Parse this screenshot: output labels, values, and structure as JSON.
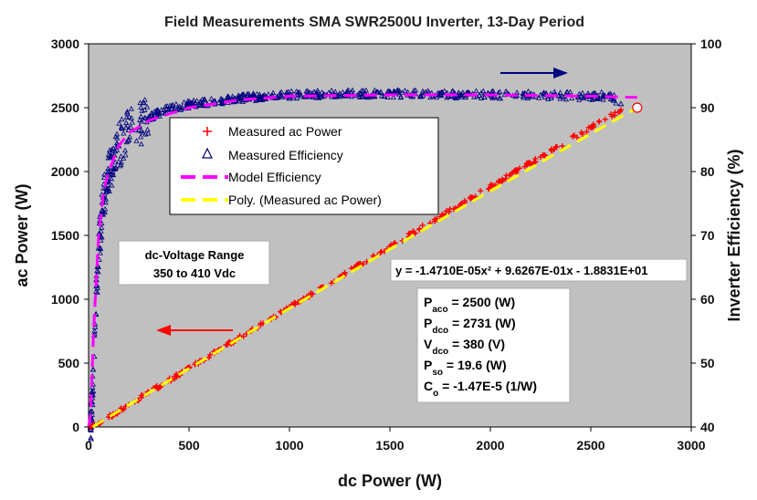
{
  "chart_data": {
    "type": "scatter",
    "title": "Field Measurements SMA SWR2500U Inverter, 13-Day Period",
    "xlabel": "dc Power (W)",
    "ylabel_left": "ac Power (W)",
    "ylabel_right": "Inverter Efficiency (%)",
    "xlim": [
      0,
      3000
    ],
    "ylim_left": [
      0,
      3000
    ],
    "ylim_right": [
      40,
      100
    ],
    "x_ticks": [
      "0",
      "500",
      "1000",
      "1500",
      "2000",
      "2500",
      "3000"
    ],
    "y_left_ticks": [
      "0",
      "500",
      "1000",
      "1500",
      "2000",
      "2500",
      "3000"
    ],
    "y_right_ticks": [
      "40",
      "50",
      "60",
      "70",
      "80",
      "90",
      "100"
    ],
    "grid": false,
    "background": "#c0c0c0",
    "legend": {
      "placement": "upper-left",
      "entries": [
        {
          "label": "Measured ac Power",
          "marker": "+",
          "color": "#ff0000"
        },
        {
          "label": "Measured Efficiency",
          "marker": "triangle",
          "color": "#000080"
        },
        {
          "label": "Model Efficiency",
          "marker": "dashed-line",
          "color": "#ff00ff"
        },
        {
          "label": "Poly. (Measured ac Power)",
          "marker": "dashed-line",
          "color": "#ffff00"
        }
      ]
    },
    "series": [
      {
        "name": "Measured ac Power",
        "axis": "left",
        "points": [
          [
            10,
            2
          ],
          [
            50,
            29
          ],
          [
            100,
            77
          ],
          [
            200,
            174
          ],
          [
            300,
            270
          ],
          [
            500,
            462
          ],
          [
            750,
            700
          ],
          [
            1000,
            939
          ],
          [
            1250,
            1176
          ],
          [
            1500,
            1412
          ],
          [
            1750,
            1647
          ],
          [
            2000,
            1881
          ],
          [
            2250,
            2114
          ],
          [
            2500,
            2345
          ],
          [
            2650,
            2483
          ]
        ]
      },
      {
        "name": "Measured Efficiency",
        "axis": "right",
        "points": [
          [
            10,
            40
          ],
          [
            20,
            45
          ],
          [
            30,
            55
          ],
          [
            50,
            68
          ],
          [
            75,
            76
          ],
          [
            100,
            80
          ],
          [
            150,
            84
          ],
          [
            200,
            86.5
          ],
          [
            300,
            88.5
          ],
          [
            400,
            89.8
          ],
          [
            500,
            90.5
          ],
          [
            750,
            91.5
          ],
          [
            1000,
            92
          ],
          [
            1250,
            92.2
          ],
          [
            1500,
            92.2
          ],
          [
            1750,
            92.1
          ],
          [
            2000,
            92
          ],
          [
            2250,
            92
          ],
          [
            2500,
            91.8
          ],
          [
            2600,
            91.9
          ],
          [
            2650,
            90.6
          ]
        ]
      },
      {
        "name": "Model Efficiency",
        "axis": "right",
        "points": [
          [
            0,
            40
          ],
          [
            10,
            42
          ],
          [
            25,
            55
          ],
          [
            50,
            70
          ],
          [
            75,
            77
          ],
          [
            100,
            80
          ],
          [
            150,
            84
          ],
          [
            200,
            86
          ],
          [
            300,
            88
          ],
          [
            500,
            90
          ],
          [
            750,
            91.2
          ],
          [
            1000,
            91.8
          ],
          [
            1500,
            92
          ],
          [
            2000,
            92
          ],
          [
            2500,
            91.8
          ],
          [
            2731,
            91.6
          ]
        ]
      },
      {
        "name": "Poly. (Measured ac Power)",
        "axis": "left",
        "points": [
          [
            20,
            0.4
          ],
          [
            500,
            458
          ],
          [
            1000,
            929
          ],
          [
            1500,
            1392
          ],
          [
            2000,
            1848
          ],
          [
            2500,
            2296
          ],
          [
            2731,
            2500
          ]
        ]
      }
    ],
    "reference_point": {
      "x": 2731,
      "y": 2500
    },
    "annotations": {
      "dc_voltage_line1": "dc-Voltage Range",
      "dc_voltage_line2": "350 to 410 Vdc",
      "equation": "y = -1.4710E-05x² + 9.6267E-01x - 1.8831E+01",
      "params": [
        {
          "sym": "P",
          "sub": "aco",
          "rest": " = 2500 (W)"
        },
        {
          "sym": "P",
          "sub": "dco",
          "rest": " = 2731 (W)"
        },
        {
          "sym": "V",
          "sub": "dco",
          "rest": " = 380 (V)"
        },
        {
          "sym": "P",
          "sub": "so",
          "rest": " = 19.6 (W)"
        },
        {
          "sym": "C",
          "sub": "o",
          "rest": " = -1.47E-5 (1/W)"
        }
      ]
    },
    "colors": {
      "ac_power": "#ff0000",
      "efficiency": "#000080",
      "model": "#ff00ff",
      "poly": "#ffff00",
      "left_arrow": "#ff0000",
      "right_arrow": "#000080"
    }
  }
}
